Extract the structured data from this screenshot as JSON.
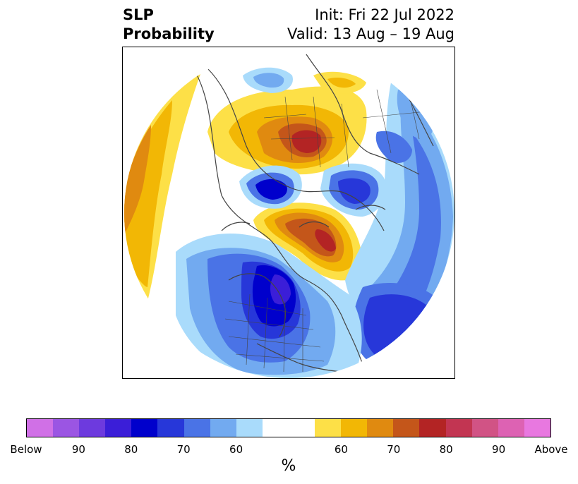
{
  "header": {
    "title_line1": "SLP",
    "title_line2": "Probability",
    "init": "Init: Fri 22 Jul 2022",
    "valid": "Valid: 13 Aug – 19 Aug"
  },
  "colorbar": {
    "unit_label": "%",
    "colors": [
      "#d070e6",
      "#9b55e3",
      "#6d3ade",
      "#3b1ed8",
      "#0000cc",
      "#2737d9",
      "#4a73e6",
      "#72aaf0",
      "#a9dbfb",
      "#ffffff",
      "#ffffff",
      "#fde047",
      "#f2b705",
      "#e08a10",
      "#c4561a",
      "#b32424",
      "#c23552",
      "#d15385",
      "#dd62b3",
      "#e878e0"
    ],
    "ticks": [
      {
        "label": "Below"
      },
      {
        "label": "90"
      },
      {
        "label": "80"
      },
      {
        "label": "70"
      },
      {
        "label": "60"
      },
      {
        "label": "60"
      },
      {
        "label": "70"
      },
      {
        "label": "80"
      },
      {
        "label": "90"
      },
      {
        "label": "Above"
      }
    ]
  },
  "map": {
    "projection": "north-polar-stereographic",
    "features": [
      "coastlines",
      "country-borders",
      "us-state-borders"
    ],
    "anomaly_regions": [
      {
        "id": "north-america",
        "sign": "below",
        "peak_percent": 85
      },
      {
        "id": "arctic-ocean",
        "sign": "above",
        "peak_percent": 80
      },
      {
        "id": "northern-russia",
        "sign": "above",
        "peak_percent": 80
      },
      {
        "id": "north-pacific",
        "sign": "above",
        "peak_percent": 70
      },
      {
        "id": "north-atlantic",
        "sign": "below",
        "peak_percent": 80
      },
      {
        "id": "scandinavia",
        "sign": "below",
        "peak_percent": 80
      },
      {
        "id": "siberia",
        "sign": "below",
        "peak_percent": 80
      }
    ]
  }
}
